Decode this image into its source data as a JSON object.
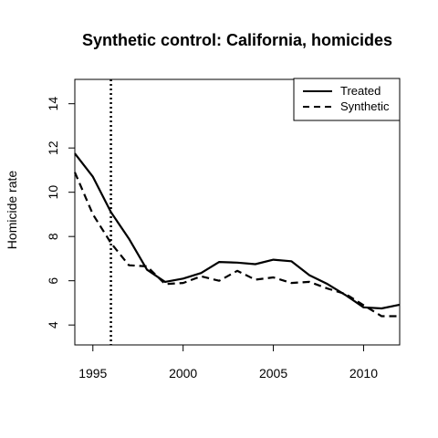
{
  "chart_data": {
    "type": "line",
    "title": "Synthetic control: California, homicides",
    "xlabel": "",
    "ylabel": "Homicide rate",
    "xlim": [
      1994,
      2012
    ],
    "ylim": [
      3.1,
      15.1
    ],
    "x_ticks": [
      1995,
      2000,
      2005,
      2010
    ],
    "y_ticks": [
      4,
      6,
      8,
      10,
      12,
      14
    ],
    "grid": false,
    "legend_position": "top-right",
    "x": [
      1994,
      1995,
      1996,
      1997,
      1998,
      1999,
      2000,
      2001,
      2002,
      2003,
      2004,
      2005,
      2006,
      2007,
      2008,
      2009,
      2010,
      2011,
      2012
    ],
    "series": [
      {
        "name": "Treated",
        "style": "solid",
        "color": "#000000",
        "values": [
          11.75,
          10.7,
          9.1,
          7.9,
          6.5,
          5.95,
          6.1,
          6.35,
          6.85,
          6.82,
          6.75,
          6.95,
          6.88,
          6.25,
          5.85,
          5.35,
          4.8,
          4.75,
          4.92
        ]
      },
      {
        "name": "Synthetic",
        "style": "dashed",
        "color": "#000000",
        "values": [
          10.9,
          9.0,
          7.7,
          6.7,
          6.65,
          5.85,
          5.9,
          6.2,
          6.0,
          6.45,
          6.05,
          6.15,
          5.9,
          5.95,
          5.65,
          5.4,
          4.9,
          4.4,
          4.4
        ]
      }
    ],
    "reference_line": {
      "x": 1996,
      "style": "dotted"
    }
  }
}
